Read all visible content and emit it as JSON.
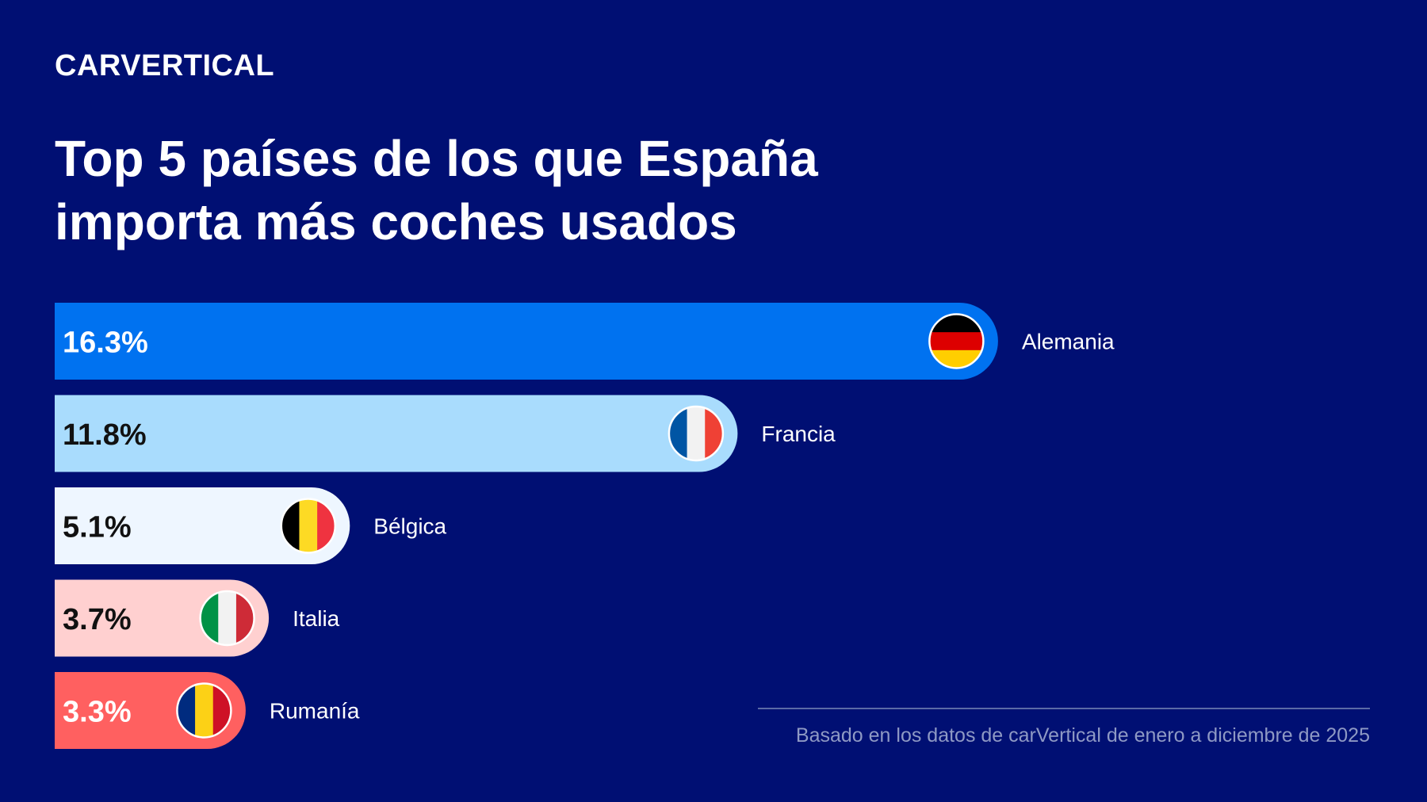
{
  "brand": {
    "logo_text": "CARVERTICAL"
  },
  "title_lines": [
    "Top 5 países de los que España",
    "importa más coches usados"
  ],
  "footnote": "Basado en los datos de carVertical de enero a diciembre de 2025",
  "chart_data": {
    "type": "bar",
    "orientation": "horizontal",
    "categories": [
      "Alemania",
      "Francia",
      "Bélgica",
      "Italia",
      "Rumanía"
    ],
    "values": [
      16.3,
      11.8,
      5.1,
      3.7,
      3.3
    ],
    "value_labels": [
      "16.3%",
      "11.8%",
      "5.1%",
      "3.7%",
      "3.3%"
    ],
    "unit": "%",
    "title": "Top 5 países de los que España importa más coches usados",
    "bar_colors": [
      "#0072f0",
      "#a9dcfd",
      "#eef6ff",
      "#ffd0d0",
      "#ff6060"
    ],
    "label_colors": [
      "#ffffff",
      "#111111",
      "#111111",
      "#111111",
      "#ffffff"
    ],
    "flags": [
      {
        "icon": "germany-flag-icon",
        "orientation": "horizontal",
        "colors": [
          "#000000",
          "#dd0000",
          "#ffce00"
        ]
      },
      {
        "icon": "france-flag-icon",
        "orientation": "vertical",
        "colors": [
          "#0055a4",
          "#f2f2f2",
          "#ef4135"
        ]
      },
      {
        "icon": "belgium-flag-icon",
        "orientation": "vertical",
        "colors": [
          "#000000",
          "#fdda24",
          "#ef3340"
        ]
      },
      {
        "icon": "italy-flag-icon",
        "orientation": "vertical",
        "colors": [
          "#009246",
          "#f2f2f2",
          "#ce2b37"
        ]
      },
      {
        "icon": "romania-flag-icon",
        "orientation": "vertical",
        "colors": [
          "#002b7f",
          "#fcd116",
          "#ce1126"
        ]
      }
    ],
    "grid": false,
    "legend": "none"
  }
}
